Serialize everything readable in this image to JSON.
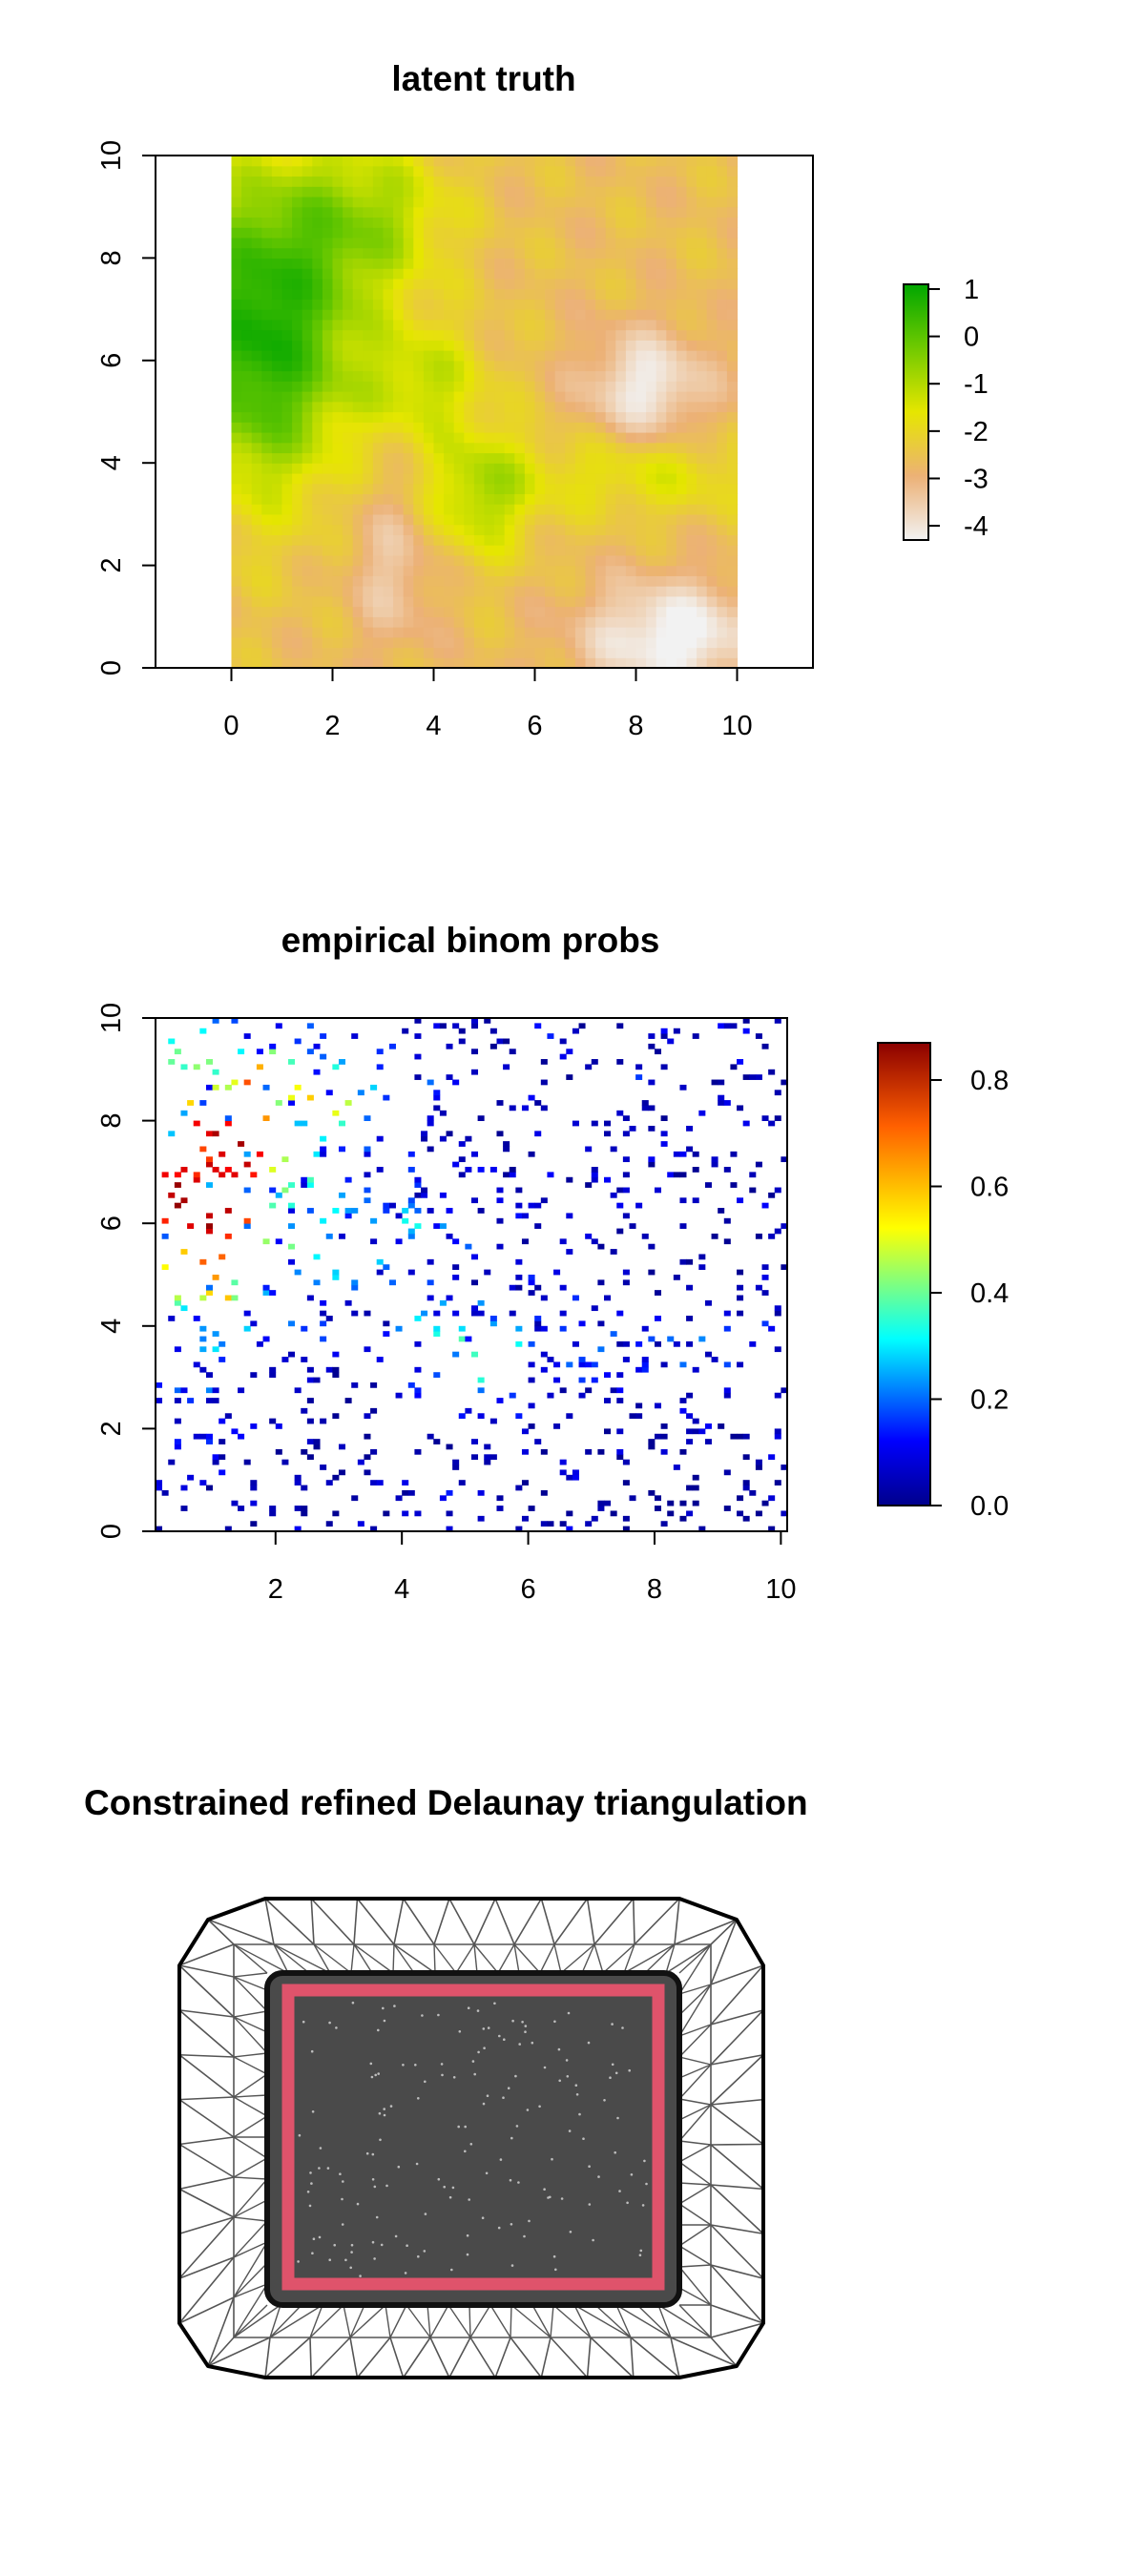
{
  "chart_data": [
    {
      "type": "heatmap",
      "title": "latent truth",
      "xlabel": "",
      "ylabel": "",
      "xlim": [
        -1.5,
        11.5
      ],
      "ylim": [
        0,
        10
      ],
      "x_ticks": [
        "0",
        "2",
        "4",
        "6",
        "8",
        "10"
      ],
      "y_ticks": [
        "0",
        "2",
        "4",
        "6",
        "8",
        "10"
      ],
      "legend": {
        "placement": "right",
        "range": [
          -4.3,
          1.1
        ],
        "ticks": [
          "1",
          "0",
          "-1",
          "-2",
          "-3",
          "-4"
        ],
        "colors": [
          "#f2f2f2",
          "#ecb176",
          "#e6e600",
          "#63c600",
          "#00a600"
        ]
      },
      "description_of_field": "smooth field over [0,10]x[0,10]; high values (green, up to ~1) on the left side around x=0-2, y=4-9 and a patch near (5,3); low values (pink/white, ~-4) at the bottom right and around (8,5.5)"
    },
    {
      "type": "heatmap",
      "title": "empirical binom probs",
      "xlabel": "",
      "ylabel": "",
      "xlim": [
        0.1,
        10.1
      ],
      "ylim": [
        0,
        10
      ],
      "x_ticks": [
        "2",
        "4",
        "6",
        "8",
        "10"
      ],
      "y_ticks": [
        "0",
        "2",
        "4",
        "6",
        "8",
        "10"
      ],
      "legend": {
        "placement": "right",
        "range": [
          0.0,
          0.87
        ],
        "ticks": [
          "0.8",
          "0.6",
          "0.4",
          "0.2",
          "0.0"
        ],
        "colors": [
          "#00008b",
          "#0000ff",
          "#00ffff",
          "#ffff00",
          "#ff0000",
          "#8b0000"
        ]
      }
    },
    {
      "type": "diagram",
      "title": "Constrained refined Delaunay triangulation",
      "boundary_color": "#df536b",
      "mesh_color": "#555555"
    }
  ]
}
